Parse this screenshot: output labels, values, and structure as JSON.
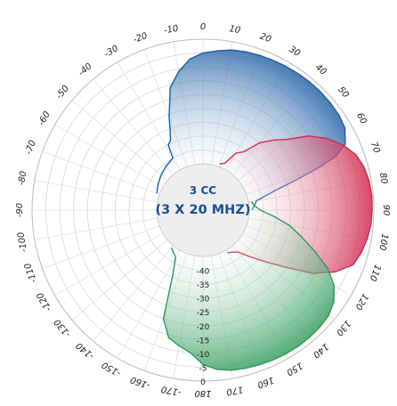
{
  "chart_data": {
    "type": "polar-area",
    "center_label": {
      "line1": "3 CC",
      "line2": "(3 X 20 MHZ)"
    },
    "angle_ticks": [
      0,
      10,
      20,
      30,
      40,
      50,
      60,
      70,
      80,
      90,
      100,
      110,
      120,
      130,
      140,
      150,
      160,
      170,
      180,
      -170,
      -160,
      -150,
      -140,
      -130,
      -120,
      -110,
      -100,
      -90,
      -80,
      -70,
      -60,
      -50,
      -40,
      -30,
      -20,
      -10
    ],
    "angle_tick_labels": [
      "0",
      "10",
      "20",
      "30",
      "40",
      "50",
      "60",
      "70",
      "80",
      "90",
      "100",
      "110",
      "120",
      "130",
      "140",
      "150",
      "160",
      "170",
      "180",
      "-170",
      "-160",
      "-150",
      "-140",
      "-130",
      "-120",
      "-110",
      "-100",
      "-90",
      "-80",
      "-70",
      "-60",
      "-50",
      "-40",
      "-30",
      "-20",
      "-10"
    ],
    "radial_ticks": [
      -40,
      -35,
      -30,
      -25,
      -20,
      -15,
      -10,
      -5,
      0
    ],
    "radial_tick_labels": [
      "-40",
      "-35",
      "-30",
      "-25",
      "-20",
      "-15",
      "-10",
      "-5",
      "0"
    ],
    "rlim": [
      -45,
      0
    ],
    "grid": true,
    "series": [
      {
        "color": "#1f5fa5",
        "points": [
          [
            -70,
            -44
          ],
          [
            -60,
            -43
          ],
          [
            -50,
            -42
          ],
          [
            -40,
            -41
          ],
          [
            -30,
            -40
          ],
          [
            -28,
            -35
          ],
          [
            -25,
            -34
          ],
          [
            -22,
            -30
          ],
          [
            -20,
            -26
          ],
          [
            -15,
            -16
          ],
          [
            -10,
            -11
          ],
          [
            -5,
            -7
          ],
          [
            0,
            -5
          ],
          [
            5,
            -4
          ],
          [
            10,
            -3
          ],
          [
            15,
            -2.5
          ],
          [
            20,
            -2.2
          ],
          [
            25,
            -2
          ],
          [
            30,
            -1.8
          ],
          [
            35,
            -1.6
          ],
          [
            40,
            -1.5
          ],
          [
            45,
            -1.5
          ],
          [
            50,
            -1.6
          ],
          [
            55,
            -1.8
          ],
          [
            60,
            -2.5
          ],
          [
            65,
            -5
          ],
          [
            68,
            -10
          ],
          [
            70,
            -18
          ],
          [
            72,
            -26
          ],
          [
            75,
            -35
          ],
          [
            80,
            -42
          ],
          [
            90,
            -44
          ]
        ]
      },
      {
        "color": "#d12a4f",
        "points": [
          [
            20,
            -44
          ],
          [
            25,
            -43
          ],
          [
            30,
            -38
          ],
          [
            35,
            -36
          ],
          [
            40,
            -30
          ],
          [
            45,
            -26
          ],
          [
            50,
            -22
          ],
          [
            55,
            -15
          ],
          [
            60,
            -10
          ],
          [
            65,
            -6
          ],
          [
            70,
            -3
          ],
          [
            75,
            -1.5
          ],
          [
            80,
            -0.8
          ],
          [
            85,
            -0.5
          ],
          [
            90,
            -0.6
          ],
          [
            95,
            -0.8
          ],
          [
            100,
            -1.5
          ],
          [
            105,
            -2.5
          ],
          [
            110,
            -4
          ],
          [
            115,
            -9
          ],
          [
            120,
            -16
          ],
          [
            125,
            -26
          ],
          [
            130,
            -33
          ],
          [
            135,
            -38
          ],
          [
            140,
            -42
          ],
          [
            150,
            -44
          ]
        ]
      },
      {
        "color": "#2e9a5a",
        "points": [
          [
            80,
            -44
          ],
          [
            85,
            -43
          ],
          [
            90,
            -41
          ],
          [
            95,
            -36
          ],
          [
            100,
            -30
          ],
          [
            105,
            -25
          ],
          [
            110,
            -19
          ],
          [
            115,
            -12
          ],
          [
            120,
            -7
          ],
          [
            125,
            -4
          ],
          [
            130,
            -2.5
          ],
          [
            135,
            -2
          ],
          [
            140,
            -1.8
          ],
          [
            145,
            -1.7
          ],
          [
            150,
            -1.8
          ],
          [
            155,
            -2
          ],
          [
            160,
            -2.3
          ],
          [
            165,
            -2.6
          ],
          [
            170,
            -3
          ],
          [
            175,
            -4
          ],
          [
            180,
            -6
          ],
          [
            -175,
            -10
          ],
          [
            -170,
            -12
          ],
          [
            -165,
            -14
          ],
          [
            -160,
            -20
          ],
          [
            -155,
            -36
          ],
          [
            -150,
            -42
          ],
          [
            -140,
            -44
          ]
        ]
      }
    ]
  }
}
